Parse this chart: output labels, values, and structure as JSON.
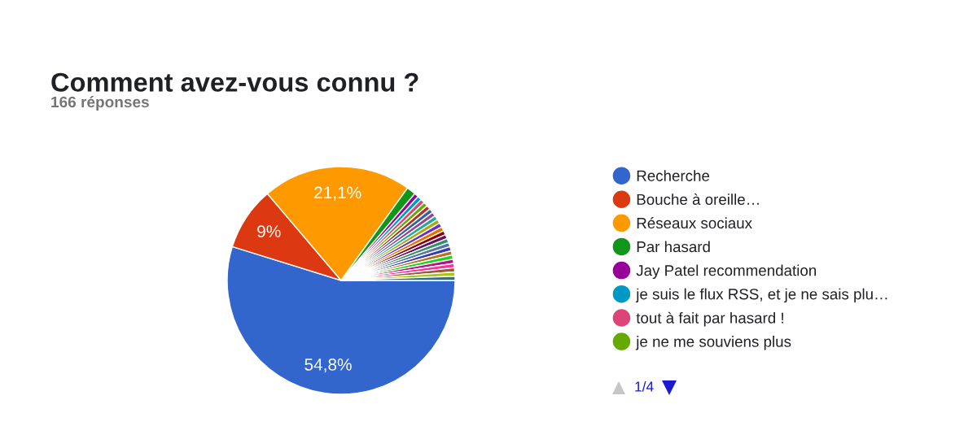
{
  "chart_data": {
    "type": "pie",
    "title": "Comment avez-vous connu ?",
    "subtitle": "166 réponses",
    "categories": [
      "Recherche",
      "Bouche à oreille…",
      "Réseaux sociaux",
      "Par hasard",
      "Jay Patel recommendation",
      "je suis le flux RSS, et je ne sais plu…",
      "tout à fait par hasard !",
      "je ne me souviens plus",
      null,
      null,
      null,
      null,
      null,
      null,
      null,
      null,
      null,
      null,
      null,
      null,
      null,
      null,
      null,
      null,
      null,
      null,
      null
    ],
    "values": [
      54.8,
      9,
      21.1,
      1.3,
      0.6,
      0.6,
      0.6,
      0.6,
      0.6,
      0.6,
      0.6,
      0.6,
      0.6,
      0.6,
      0.6,
      0.6,
      0.6,
      0.6,
      0.6,
      0.6,
      0.6,
      0.6,
      0.6,
      0.6,
      0.6,
      0.6,
      0.6
    ],
    "colors": [
      "#3366cc",
      "#dc3912",
      "#ff9900",
      "#109618",
      "#990099",
      "#0099c6",
      "#dd4477",
      "#66aa00",
      "#b82e2e",
      "#316395",
      "#994499",
      "#22aa99",
      "#aaaa11",
      "#6633cc",
      "#e67300",
      "#8b0707",
      "#651067",
      "#329262",
      "#5574a6",
      "#3b3eac",
      "#b77322",
      "#16d620",
      "#b91383",
      "#f4359e",
      "#9c5935",
      "#a9c413",
      "#2a778d"
    ],
    "value_labels": [
      "54,8%",
      "9%",
      "21,1%",
      null,
      null,
      null,
      null,
      null,
      null,
      null,
      null,
      null,
      null,
      null,
      null,
      null,
      null,
      null,
      null,
      null,
      null,
      null,
      null,
      null,
      null,
      null,
      null
    ],
    "legend": "right",
    "annotations": [
      "1/4"
    ]
  }
}
